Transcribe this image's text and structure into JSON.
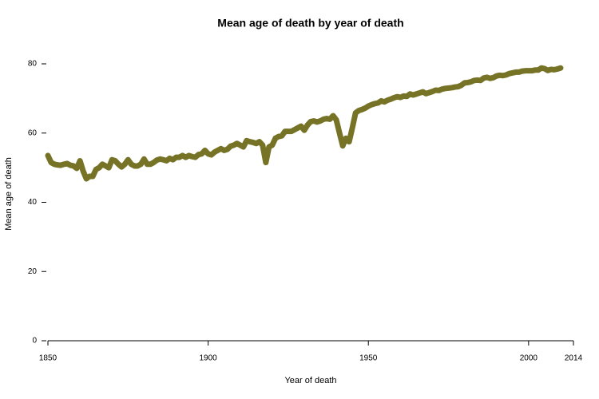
{
  "chart_data": {
    "type": "line",
    "title": "Mean age of death by year of death",
    "xlabel": "Year of death",
    "ylabel": "Mean age of death",
    "x": [
      1850,
      1851,
      1852,
      1853,
      1854,
      1855,
      1856,
      1857,
      1858,
      1859,
      1860,
      1861,
      1862,
      1863,
      1864,
      1865,
      1866,
      1867,
      1868,
      1869,
      1870,
      1871,
      1872,
      1873,
      1874,
      1875,
      1876,
      1877,
      1878,
      1879,
      1880,
      1881,
      1882,
      1883,
      1884,
      1885,
      1886,
      1887,
      1888,
      1889,
      1890,
      1891,
      1892,
      1893,
      1894,
      1895,
      1896,
      1897,
      1898,
      1899,
      1900,
      1901,
      1902,
      1903,
      1904,
      1905,
      1906,
      1907,
      1908,
      1909,
      1910,
      1911,
      1912,
      1913,
      1914,
      1915,
      1916,
      1917,
      1918,
      1919,
      1920,
      1921,
      1922,
      1923,
      1924,
      1925,
      1926,
      1927,
      1928,
      1929,
      1930,
      1931,
      1932,
      1933,
      1934,
      1935,
      1936,
      1937,
      1938,
      1939,
      1940,
      1941,
      1942,
      1943,
      1944,
      1945,
      1946,
      1947,
      1948,
      1949,
      1950,
      1951,
      1952,
      1953,
      1954,
      1955,
      1956,
      1957,
      1958,
      1959,
      1960,
      1961,
      1962,
      1963,
      1964,
      1965,
      1966,
      1967,
      1968,
      1969,
      1970,
      1971,
      1972,
      1973,
      1974,
      1975,
      1976,
      1977,
      1978,
      1979,
      1980,
      1981,
      1982,
      1983,
      1984,
      1985,
      1986,
      1987,
      1988,
      1989,
      1990,
      1991,
      1992,
      1993,
      1994,
      1995,
      1996,
      1997,
      1998,
      1999,
      2000,
      2001,
      2002,
      2003,
      2004,
      2005,
      2006,
      2007,
      2008,
      2009,
      2010
    ],
    "series": [
      {
        "name": "Mean age of death",
        "color": "#767326",
        "values": [
          53.5,
          51.5,
          51,
          50.8,
          50.7,
          51,
          51.2,
          50.7,
          50.5,
          49.8,
          52,
          49,
          46.8,
          47.5,
          47.5,
          49.5,
          50,
          51,
          50.5,
          50,
          52.3,
          52,
          51,
          50.2,
          51,
          52.3,
          51,
          50.5,
          50.5,
          51,
          52.5,
          51,
          51,
          51.5,
          52.2,
          52.5,
          52.3,
          52,
          52.7,
          52.3,
          53,
          53,
          53.5,
          53,
          53.5,
          53.2,
          53,
          53.8,
          54,
          55,
          54,
          53.7,
          54.5,
          55,
          55.5,
          55,
          55.3,
          56.2,
          56.5,
          57,
          56.5,
          56,
          57.8,
          57.5,
          57.3,
          57,
          57.5,
          56.5,
          51.5,
          56,
          56.5,
          58.5,
          59,
          59.2,
          60.5,
          60.5,
          60.5,
          61,
          61.5,
          62,
          60.8,
          62.3,
          63.3,
          63.5,
          63.2,
          63.5,
          64,
          64.2,
          64,
          65,
          63.8,
          60,
          56.3,
          58.5,
          57.5,
          61.5,
          65.8,
          66.5,
          66.8,
          67.2,
          67.8,
          68.2,
          68.5,
          68.7,
          69.3,
          69,
          69.5,
          69.8,
          70.2,
          70.5,
          70.3,
          70.7,
          70.6,
          71.3,
          71,
          71.3,
          71.6,
          71.9,
          71.4,
          71.7,
          72,
          72.4,
          72.3,
          72.7,
          72.9,
          73,
          73.1,
          73.3,
          73.4,
          73.8,
          74.5,
          74.6,
          74.8,
          75.2,
          75.3,
          75.2,
          75.9,
          76.1,
          75.8,
          76,
          76.5,
          76.7,
          76.6,
          76.8,
          77.2,
          77.4,
          77.6,
          77.6,
          77.9,
          78,
          78,
          78,
          78.2,
          78.2,
          78.8,
          78.6,
          78.1,
          78.4,
          78.3,
          78.5,
          78.8
        ]
      }
    ],
    "xlim": [
      1850,
      2014
    ],
    "xticks": [
      1850,
      1900,
      1950,
      2000,
      2014
    ],
    "ylim": [
      0,
      80
    ],
    "yticks": [
      0,
      20,
      40,
      60,
      80
    ]
  }
}
